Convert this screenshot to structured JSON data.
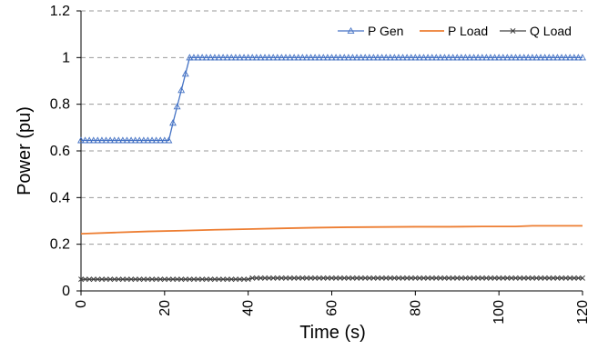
{
  "chart_data": {
    "type": "line",
    "title": "",
    "xlabel": "Time (s)",
    "ylabel": "Power (pu)",
    "xlim": [
      0,
      120
    ],
    "ylim": [
      0,
      1.2
    ],
    "x_ticks": [
      "0",
      "20",
      "40",
      "60",
      "80",
      "100",
      "120"
    ],
    "y_ticks": [
      "0",
      "0.2",
      "0.4",
      "0.6",
      "0.8",
      "1",
      "1.2"
    ],
    "grid": "horizontal dashed",
    "legend_position": "top-right",
    "series": [
      {
        "name": "P Gen",
        "color": "#4472C4",
        "marker": "triangle",
        "x": [
          0,
          1,
          2,
          3,
          4,
          5,
          6,
          7,
          8,
          9,
          10,
          11,
          12,
          13,
          14,
          15,
          16,
          17,
          18,
          19,
          20,
          21,
          22,
          23,
          24,
          25,
          26,
          27,
          28,
          29,
          30,
          31,
          32,
          33,
          34,
          35,
          36,
          37,
          38,
          39,
          40,
          41,
          42,
          43,
          44,
          45,
          46,
          47,
          48,
          49,
          50,
          51,
          52,
          53,
          54,
          55,
          56,
          57,
          58,
          59,
          60,
          61,
          62,
          63,
          64,
          65,
          66,
          67,
          68,
          69,
          70,
          71,
          72,
          73,
          74,
          75,
          76,
          77,
          78,
          79,
          80,
          81,
          82,
          83,
          84,
          85,
          86,
          87,
          88,
          89,
          90,
          91,
          92,
          93,
          94,
          95,
          96,
          97,
          98,
          99,
          100,
          101,
          102,
          103,
          104,
          105,
          106,
          107,
          108,
          109,
          110,
          111,
          112,
          113,
          114,
          115,
          116,
          117,
          118,
          119,
          120
        ],
        "values": [
          0.645,
          0.645,
          0.645,
          0.645,
          0.645,
          0.645,
          0.645,
          0.645,
          0.645,
          0.645,
          0.645,
          0.645,
          0.645,
          0.645,
          0.645,
          0.645,
          0.645,
          0.645,
          0.645,
          0.645,
          0.645,
          0.645,
          0.72,
          0.79,
          0.86,
          0.93,
          1.0,
          1.0,
          1.0,
          1.0,
          1.0,
          1.0,
          1.0,
          1.0,
          1.0,
          1.0,
          1.0,
          1.0,
          1.0,
          1.0,
          1.0,
          1.0,
          1.0,
          1.0,
          1.0,
          1.0,
          1.0,
          1.0,
          1.0,
          1.0,
          1.0,
          1.0,
          1.0,
          1.0,
          1.0,
          1.0,
          1.0,
          1.0,
          1.0,
          1.0,
          1.0,
          1.0,
          1.0,
          1.0,
          1.0,
          1.0,
          1.0,
          1.0,
          1.0,
          1.0,
          1.0,
          1.0,
          1.0,
          1.0,
          1.0,
          1.0,
          1.0,
          1.0,
          1.0,
          1.0,
          1.0,
          1.0,
          1.0,
          1.0,
          1.0,
          1.0,
          1.0,
          1.0,
          1.0,
          1.0,
          1.0,
          1.0,
          1.0,
          1.0,
          1.0,
          1.0,
          1.0,
          1.0,
          1.0,
          1.0,
          1.0,
          1.0,
          1.0,
          1.0,
          1.0,
          1.0,
          1.0,
          1.0,
          1.0,
          1.0,
          1.0,
          1.0,
          1.0,
          1.0,
          1.0,
          1.0,
          1.0,
          1.0,
          1.0,
          1.0,
          1.0
        ]
      },
      {
        "name": "P Load",
        "color": "#ED7D31",
        "marker": "none",
        "x": [
          0,
          8,
          16,
          24,
          32,
          40,
          48,
          56,
          64,
          72,
          80,
          88,
          96,
          104,
          108,
          120
        ],
        "values": [
          0.245,
          0.25,
          0.255,
          0.258,
          0.262,
          0.265,
          0.268,
          0.271,
          0.273,
          0.274,
          0.275,
          0.275,
          0.276,
          0.276,
          0.279,
          0.279
        ]
      },
      {
        "name": "Q Load",
        "color": "#404040",
        "marker": "x",
        "x": [
          0,
          1,
          2,
          3,
          4,
          5,
          6,
          7,
          8,
          9,
          10,
          11,
          12,
          13,
          14,
          15,
          16,
          17,
          18,
          19,
          20,
          21,
          22,
          23,
          24,
          25,
          26,
          27,
          28,
          29,
          30,
          31,
          32,
          33,
          34,
          35,
          36,
          37,
          38,
          39,
          40,
          41,
          42,
          43,
          44,
          45,
          46,
          47,
          48,
          49,
          50,
          51,
          52,
          53,
          54,
          55,
          56,
          57,
          58,
          59,
          60,
          61,
          62,
          63,
          64,
          65,
          66,
          67,
          68,
          69,
          70,
          71,
          72,
          73,
          74,
          75,
          76,
          77,
          78,
          79,
          80,
          81,
          82,
          83,
          84,
          85,
          86,
          87,
          88,
          89,
          90,
          91,
          92,
          93,
          94,
          95,
          96,
          97,
          98,
          99,
          100,
          101,
          102,
          103,
          104,
          105,
          106,
          107,
          108,
          109,
          110,
          111,
          112,
          113,
          114,
          115,
          116,
          117,
          118,
          119,
          120
        ],
        "values": [
          0.05,
          0.05,
          0.05,
          0.05,
          0.05,
          0.05,
          0.05,
          0.05,
          0.05,
          0.05,
          0.05,
          0.05,
          0.05,
          0.05,
          0.05,
          0.05,
          0.05,
          0.05,
          0.05,
          0.05,
          0.05,
          0.05,
          0.05,
          0.05,
          0.05,
          0.05,
          0.05,
          0.05,
          0.05,
          0.05,
          0.05,
          0.05,
          0.05,
          0.05,
          0.05,
          0.05,
          0.05,
          0.05,
          0.05,
          0.05,
          0.05,
          0.055,
          0.055,
          0.055,
          0.055,
          0.055,
          0.055,
          0.055,
          0.055,
          0.055,
          0.055,
          0.055,
          0.055,
          0.055,
          0.055,
          0.055,
          0.055,
          0.055,
          0.055,
          0.055,
          0.055,
          0.055,
          0.055,
          0.055,
          0.055,
          0.055,
          0.055,
          0.055,
          0.055,
          0.055,
          0.055,
          0.055,
          0.055,
          0.055,
          0.055,
          0.055,
          0.055,
          0.055,
          0.055,
          0.055,
          0.055,
          0.055,
          0.055,
          0.055,
          0.055,
          0.055,
          0.055,
          0.055,
          0.055,
          0.055,
          0.055,
          0.055,
          0.055,
          0.055,
          0.055,
          0.055,
          0.055,
          0.055,
          0.055,
          0.055,
          0.055,
          0.055,
          0.055,
          0.055,
          0.055,
          0.055,
          0.055,
          0.055,
          0.055,
          0.055,
          0.055,
          0.055,
          0.055,
          0.055,
          0.055,
          0.055,
          0.055,
          0.055,
          0.055,
          0.055,
          0.055
        ]
      }
    ]
  }
}
